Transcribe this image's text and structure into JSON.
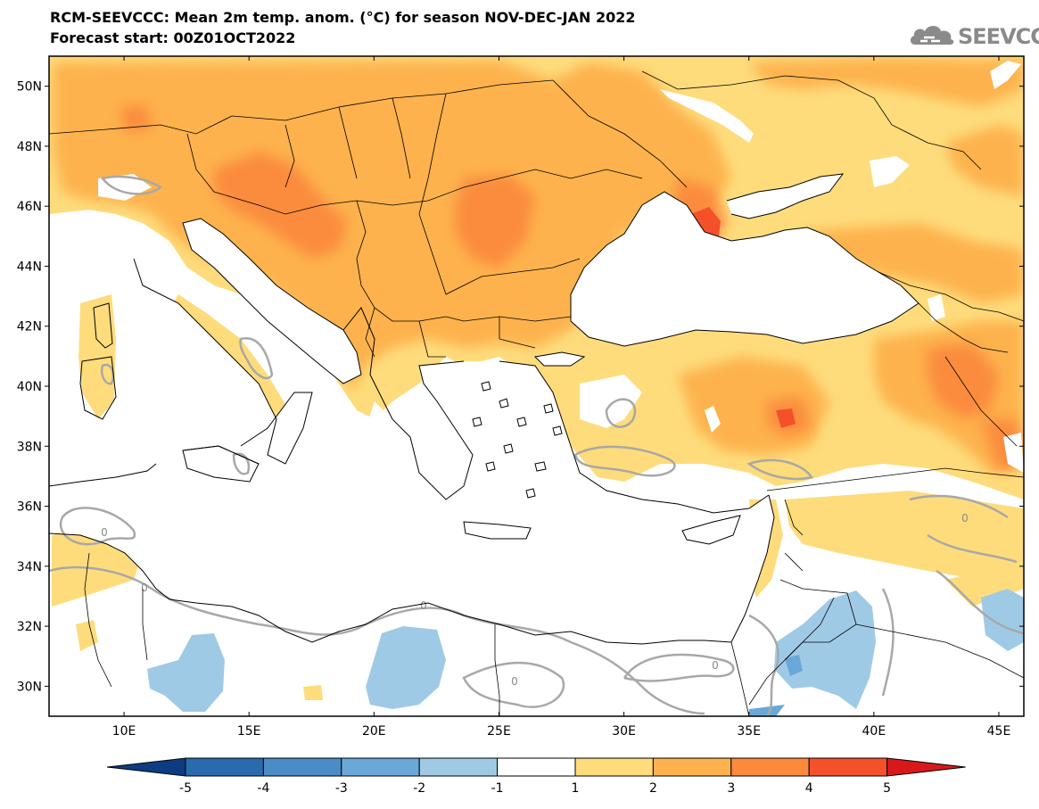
{
  "header": {
    "title": "RCM-SEEVCCC: Mean 2m temp. anom. (°C) for season NOV-DEC-JAN 2022",
    "subtitle": "Forecast start: 00Z01OCT2022"
  },
  "logo": {
    "text": "SEEVCCC",
    "icon": "cloud-icon"
  },
  "map": {
    "lat_range": [
      29,
      51
    ],
    "lon_range": [
      7,
      46
    ],
    "lat_ticks": [
      "50N",
      "48N",
      "46N",
      "44N",
      "42N",
      "40N",
      "38N",
      "36N",
      "34N",
      "32N",
      "30N"
    ],
    "lon_ticks": [
      "10E",
      "15E",
      "20E",
      "25E",
      "30E",
      "35E",
      "40E",
      "45E"
    ],
    "contour_labels": [
      "0",
      "0",
      "0",
      "0",
      "0",
      "0",
      "0",
      "0"
    ]
  },
  "colorbar": {
    "labels": [
      "-5",
      "-4",
      "-3",
      "-2",
      "-1",
      "1",
      "2",
      "3",
      "4",
      "5"
    ],
    "colors": {
      "below_-5": "#0c3d83",
      "-5_-4": "#2a6bad",
      "-4_-3": "#4a8cc6",
      "-3_-2": "#6aa8d8",
      "-2_-1": "#9fcae6",
      "-1_1": "#ffffff",
      "1_2": "#fedc7c",
      "2_3": "#fdb24e",
      "3_4": "#fb8a3c",
      "4_5": "#f4512b",
      "above_5": "#d7191c"
    }
  }
}
